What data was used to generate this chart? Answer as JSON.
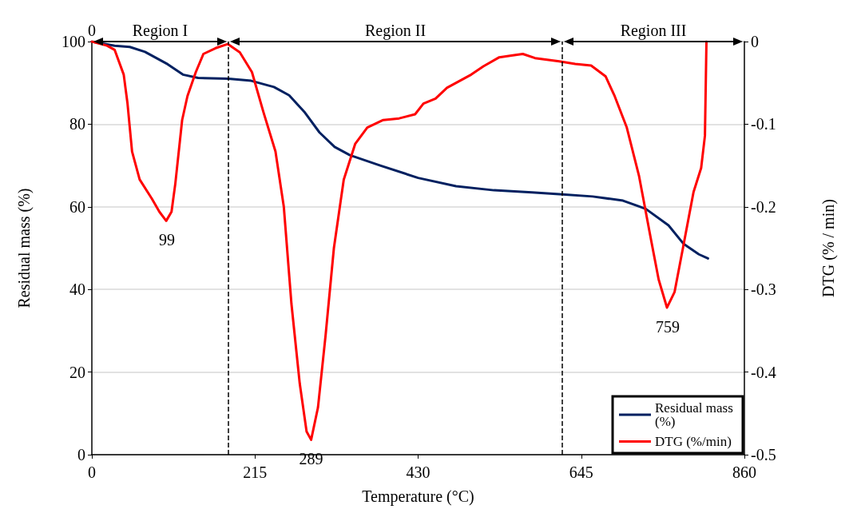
{
  "chart_data": {
    "type": "line",
    "xlabel": "Temperature (°C)",
    "ylabel": "Residual mass (%)",
    "y2label": "DTG (% / min)",
    "xlim": [
      0,
      860
    ],
    "xticks": [
      0,
      215,
      430,
      645,
      860
    ],
    "ylim": [
      0,
      100
    ],
    "yticks": [
      0,
      20,
      40,
      60,
      80,
      100
    ],
    "y2lim": [
      -0.5,
      0
    ],
    "y2ticks": [
      -0.5,
      -0.4,
      -0.3,
      -0.2,
      -0.1,
      0
    ],
    "grid": "y",
    "legend": "bottom right",
    "marker": "none",
    "line_style": "solid",
    "series": [
      {
        "name": "Residual mass (%)",
        "color": "#002060",
        "x": [
          0,
          30,
          50,
          70,
          100,
          120,
          140,
          180,
          210,
          240,
          260,
          280,
          300,
          320,
          340,
          380,
          430,
          480,
          530,
          580,
          620,
          660,
          700,
          730,
          760,
          780,
          800,
          812
        ],
        "values": [
          100,
          99,
          98.7,
          97.5,
          94.5,
          92,
          91.2,
          91,
          90.5,
          89,
          87,
          83,
          78,
          74.5,
          72.5,
          70,
          67,
          65,
          64,
          63.5,
          63,
          62.5,
          61.5,
          59.5,
          55.5,
          51,
          48.5,
          47.5
        ]
      },
      {
        "name": "DTG (%/min)",
        "color": "#ff0000",
        "axis": "y2",
        "x": [
          0,
          20,
          30,
          42,
          47,
          53,
          63,
          79,
          89,
          98,
          105,
          110,
          119,
          126,
          137,
          147,
          163,
          179,
          195,
          211,
          226,
          242,
          253,
          263,
          274,
          283,
          289,
          298,
          308,
          319,
          332,
          347,
          363,
          384,
          405,
          426,
          437,
          453,
          468,
          484,
          500,
          516,
          537,
          553,
          568,
          584,
          616,
          637,
          658,
          677,
          689,
          705,
          721,
          737,
          747,
          758,
          768,
          779,
          793,
          803,
          808,
          810
        ],
        "values": [
          0,
          -0.005,
          -0.01,
          -0.04,
          -0.075,
          -0.133,
          -0.167,
          -0.19,
          -0.206,
          -0.217,
          -0.206,
          -0.172,
          -0.095,
          -0.066,
          -0.037,
          -0.015,
          -0.008,
          -0.003,
          -0.013,
          -0.037,
          -0.085,
          -0.133,
          -0.2,
          -0.317,
          -0.414,
          -0.472,
          -0.482,
          -0.443,
          -0.356,
          -0.25,
          -0.167,
          -0.124,
          -0.104,
          -0.095,
          -0.093,
          -0.088,
          -0.075,
          -0.069,
          -0.056,
          -0.048,
          -0.04,
          -0.03,
          -0.019,
          -0.017,
          -0.015,
          -0.02,
          -0.024,
          -0.027,
          -0.029,
          -0.042,
          -0.066,
          -0.104,
          -0.162,
          -0.24,
          -0.288,
          -0.322,
          -0.303,
          -0.25,
          -0.182,
          -0.153,
          -0.114,
          0
        ]
      }
    ],
    "ref_lines": [
      {
        "axis": "x",
        "value": 180,
        "color": "#000000",
        "line_style": "dashed"
      },
      {
        "axis": "x",
        "value": 620,
        "color": "#000000",
        "line_style": "dashed"
      }
    ],
    "annotations": [
      "Region I",
      "Region II",
      "Region III",
      {
        "text": "0",
        "x": 0,
        "y": 100
      },
      {
        "text": "99",
        "x": 99,
        "y": 56.6
      },
      {
        "text": "289",
        "x": 289,
        "y": 3.6
      },
      {
        "text": "759",
        "x": 759,
        "y": 35.6
      }
    ]
  }
}
